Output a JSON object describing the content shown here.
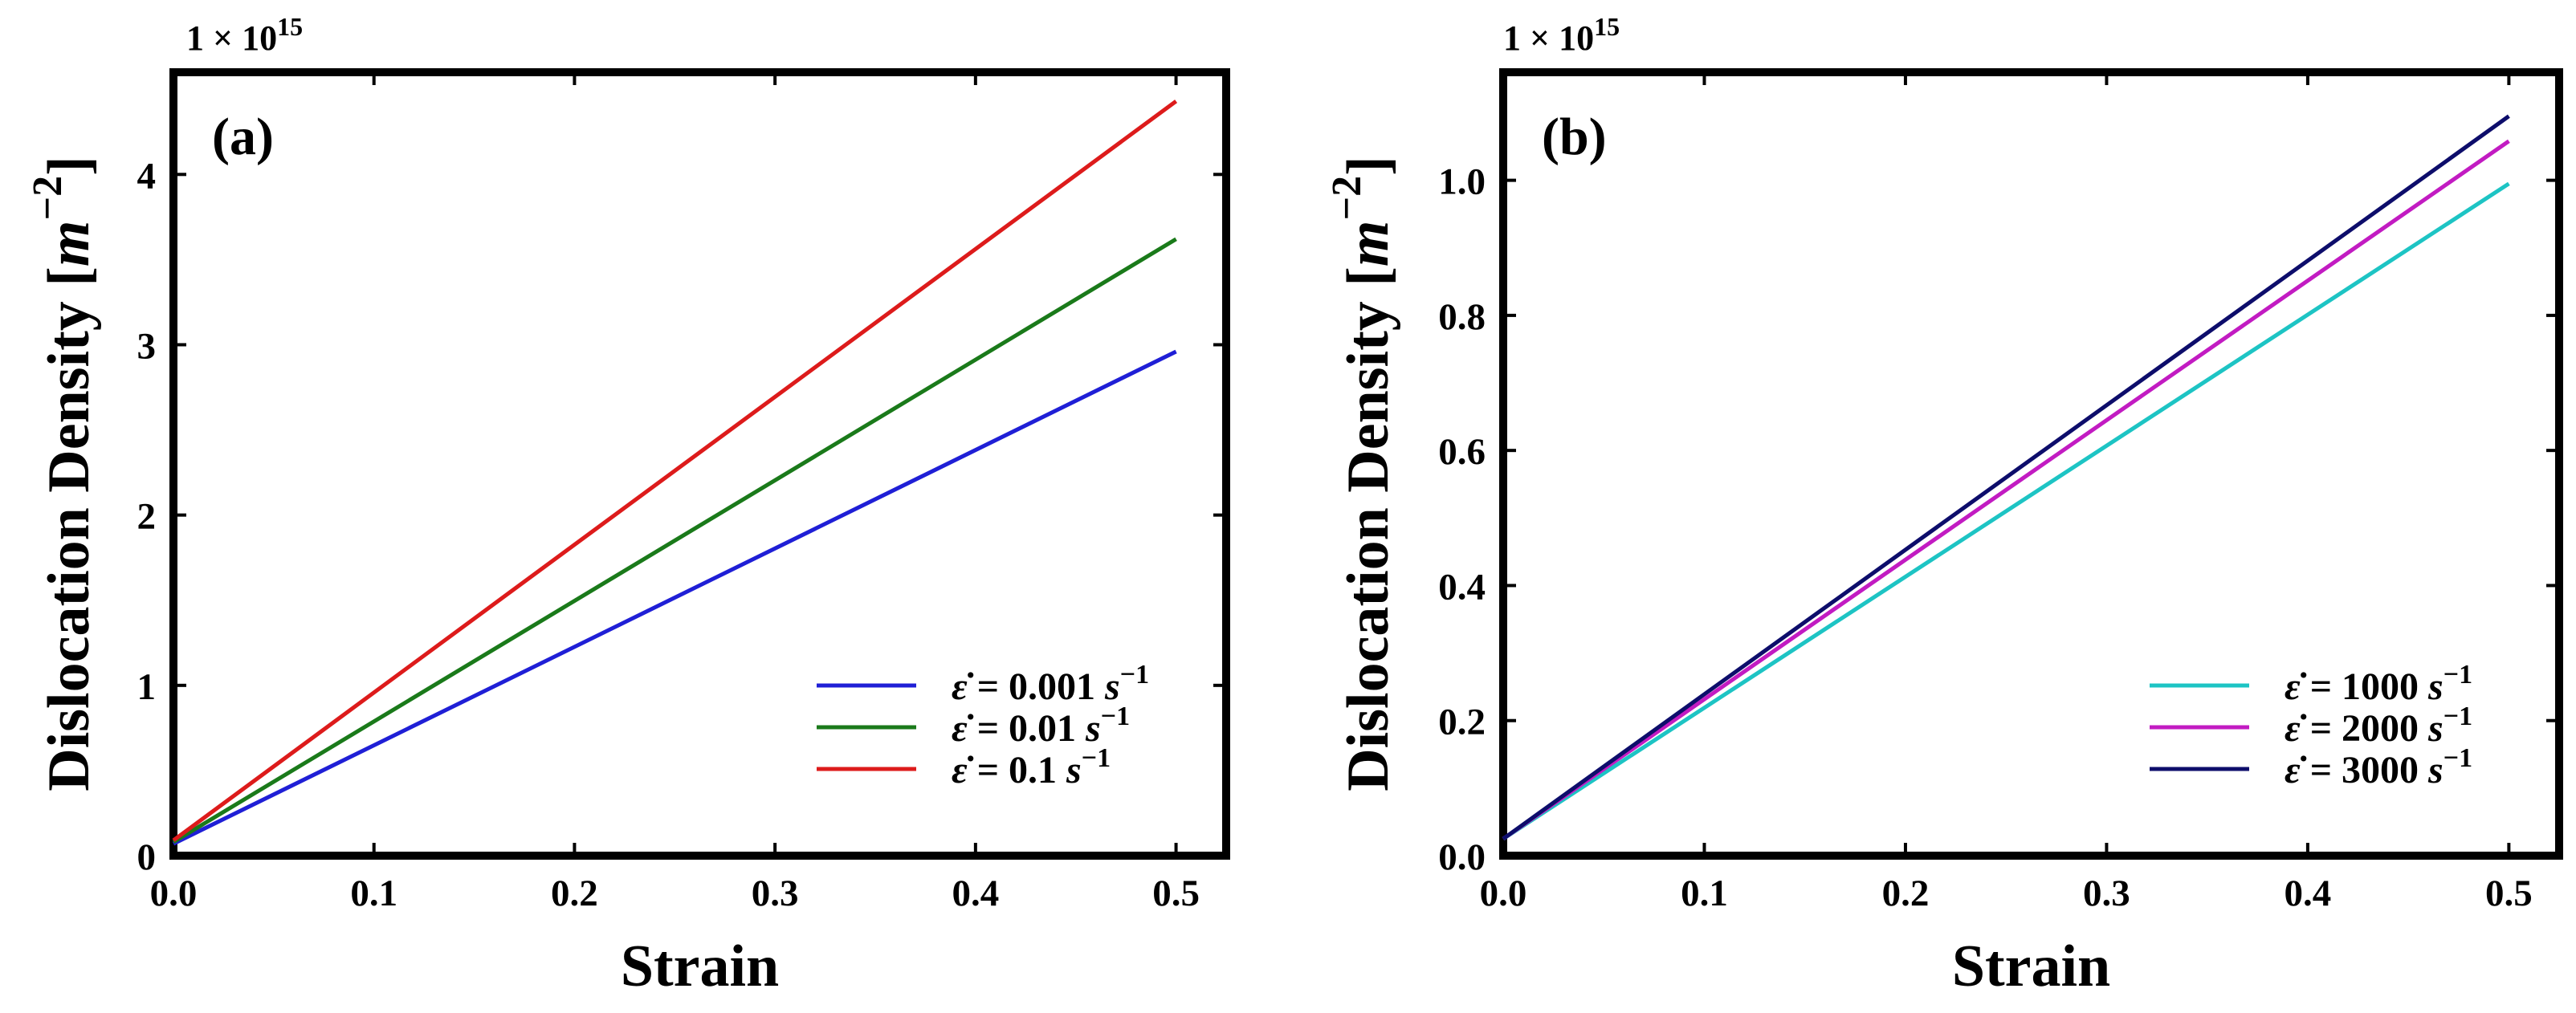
{
  "chart_data": [
    {
      "type": "line",
      "panel_label": "(a)",
      "multiplier_label": "1 × 10",
      "multiplier_exp": "15",
      "xlabel": "Strain",
      "ylabel": "Dislocation Density [",
      "ylabel_unit": "m",
      "ylabel_exp": "−2",
      "ylabel_close": "]",
      "xlim": [
        0.0,
        0.525
      ],
      "ylim": [
        0.0,
        4.6
      ],
      "xticks": [
        0.0,
        0.1,
        0.2,
        0.3,
        0.4,
        0.5
      ],
      "xtick_labels": [
        "0.0",
        "0.1",
        "0.2",
        "0.3",
        "0.4",
        "0.5"
      ],
      "yticks": [
        0,
        1,
        2,
        3,
        4
      ],
      "ytick_labels": [
        "0",
        "1",
        "2",
        "3",
        "4"
      ],
      "legend_position": "lower-right",
      "series": [
        {
          "name": "ε̇ = 0.001 s⁻¹",
          "symbol": "ε̇",
          "eq": " = 0.001 ",
          "unit": "s",
          "exp": "−1",
          "color": "#1f1fd6",
          "x": [
            0.0,
            0.5
          ],
          "values": [
            0.07,
            2.96
          ]
        },
        {
          "name": "ε̇ = 0.01 s⁻¹",
          "symbol": "ε̇",
          "eq": " = 0.01 ",
          "unit": "s",
          "exp": "−1",
          "color": "#1a7a1a",
          "x": [
            0.0,
            0.5
          ],
          "values": [
            0.08,
            3.62
          ]
        },
        {
          "name": "ε̇ = 0.1 s⁻¹",
          "symbol": "ε̇",
          "eq": " = 0.1 ",
          "unit": "s",
          "exp": "−1",
          "color": "#dd1b1b",
          "x": [
            0.0,
            0.5
          ],
          "values": [
            0.09,
            4.43
          ]
        }
      ]
    },
    {
      "type": "line",
      "panel_label": "(b)",
      "multiplier_label": "1 × 10",
      "multiplier_exp": "15",
      "xlabel": "Strain",
      "ylabel": "Dislocation Density [",
      "ylabel_unit": "m",
      "ylabel_exp": "−2",
      "ylabel_close": "]",
      "xlim": [
        0.0,
        0.525
      ],
      "ylim": [
        0.0,
        1.16
      ],
      "xticks": [
        0.0,
        0.1,
        0.2,
        0.3,
        0.4,
        0.5
      ],
      "xtick_labels": [
        "0.0",
        "0.1",
        "0.2",
        "0.3",
        "0.4",
        "0.5"
      ],
      "yticks": [
        0.0,
        0.2,
        0.4,
        0.6,
        0.8,
        1.0
      ],
      "ytick_labels": [
        "0.0",
        "0.2",
        "0.4",
        "0.6",
        "0.8",
        "1.0"
      ],
      "legend_position": "lower-right",
      "series": [
        {
          "name": "ε̇ = 1000 s⁻¹",
          "symbol": "ε̇",
          "eq": " = 1000 ",
          "unit": "s",
          "exp": "−1",
          "color": "#1dc4c4",
          "x": [
            0.0,
            0.5
          ],
          "values": [
            0.025,
            0.995
          ]
        },
        {
          "name": "ε̇ = 2000 s⁻¹",
          "symbol": "ε̇",
          "eq": " = 2000 ",
          "unit": "s",
          "exp": "−1",
          "color": "#c21bc2",
          "x": [
            0.0,
            0.5
          ],
          "values": [
            0.025,
            1.058
          ]
        },
        {
          "name": "ε̇ = 3000 s⁻¹",
          "symbol": "ε̇",
          "eq": " = 3000 ",
          "unit": "s",
          "exp": "−1",
          "color": "#0d0d6b",
          "x": [
            0.0,
            0.5
          ],
          "values": [
            0.025,
            1.095
          ]
        }
      ]
    }
  ]
}
